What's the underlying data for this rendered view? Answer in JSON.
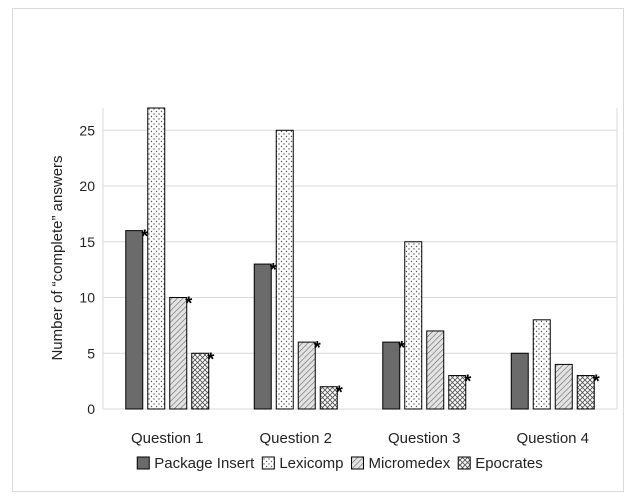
{
  "chart_data": {
    "type": "bar",
    "title": "",
    "xlabel": "",
    "ylabel": "Number of “complete” answers",
    "ylim": [
      0,
      27
    ],
    "yticks": [
      0,
      5,
      10,
      15,
      20,
      25
    ],
    "grid": true,
    "legend_position": "bottom",
    "categories": [
      "Question 1",
      "Question 2",
      "Question 3",
      "Question 4"
    ],
    "series": [
      {
        "name": "Package Insert",
        "values": [
          16,
          13,
          6,
          5
        ],
        "significant": [
          true,
          true,
          true,
          false
        ],
        "fill": "#6b6b6b",
        "pattern": "solid"
      },
      {
        "name": "Lexicomp",
        "values": [
          27,
          25,
          15,
          8
        ],
        "significant": [
          false,
          false,
          false,
          false
        ],
        "fill": "#ffffff",
        "pattern": "dots"
      },
      {
        "name": "Micromedex",
        "values": [
          10,
          6,
          7,
          4
        ],
        "significant": [
          true,
          true,
          false,
          false
        ],
        "fill": "#d9d9d9",
        "pattern": "diagonal"
      },
      {
        "name": "Epocrates",
        "values": [
          5,
          2,
          3,
          3
        ],
        "significant": [
          true,
          true,
          true,
          true
        ],
        "fill": "#ffffff",
        "pattern": "crosshatch"
      }
    ],
    "annotation_symbol": "*"
  }
}
